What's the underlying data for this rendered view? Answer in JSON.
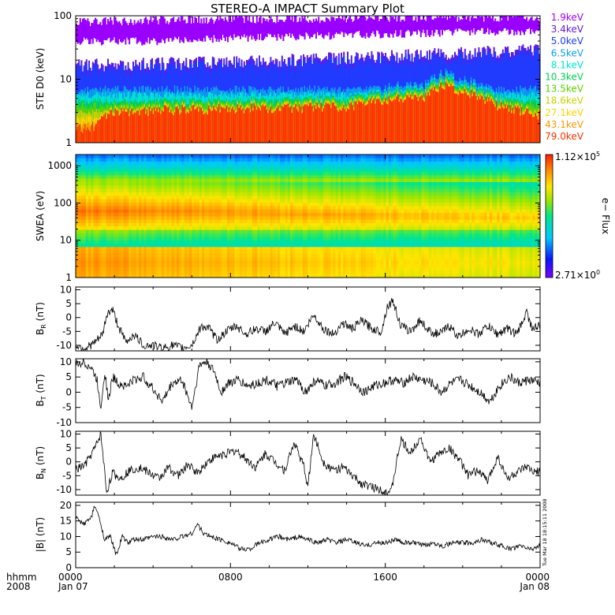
{
  "title": "STEREO-A IMPACT Summary Plot",
  "stamp": "Tue Mar 18 18:15:11 2008",
  "time_axis": {
    "row1_label": "hhmm",
    "row2_label": "2008",
    "ticks": [
      {
        "hour": 0,
        "top": "0000",
        "bottom": "Jan 07"
      },
      {
        "hour": 8,
        "top": "0800",
        "bottom": ""
      },
      {
        "hour": 16,
        "top": "1600",
        "bottom": ""
      },
      {
        "hour": 24,
        "top": "0000",
        "bottom": "Jan 08"
      }
    ],
    "range_hours": [
      0,
      24
    ]
  },
  "chart_data": [
    {
      "type": "line",
      "panel": "ste",
      "ylabel": "STE D0 (keV)",
      "yscale": "log",
      "ylim": [
        1,
        100
      ],
      "yticks": [
        {
          "v": 1,
          "label": "1"
        },
        {
          "v": 10,
          "label": "10"
        },
        {
          "v": 100,
          "label": "100"
        }
      ],
      "channels": [
        {
          "name": "1.9keV",
          "color": "#9900ff"
        },
        {
          "name": "3.4keV",
          "color": "#5a1ee6"
        },
        {
          "name": "5.0keV",
          "color": "#1e3cff"
        },
        {
          "name": "6.5keV",
          "color": "#0aa0f0"
        },
        {
          "name": "8.1keV",
          "color": "#00e6d2"
        },
        {
          "name": "10.3keV",
          "color": "#00d250"
        },
        {
          "name": "13.5keV",
          "color": "#5ad200"
        },
        {
          "name": "18.6keV",
          "color": "#c8d200"
        },
        {
          "name": "27.1keV",
          "color": "#ffd200"
        },
        {
          "name": "43.1keV",
          "color": "#ff9600"
        },
        {
          "name": "79.0keV",
          "color": "#ff3200"
        }
      ],
      "bands": [
        {
          "channel": "1.9keV",
          "hours": [
            0,
            4,
            8,
            12,
            16,
            20,
            24
          ],
          "low": [
            40,
            40,
            45,
            48,
            52,
            55,
            58
          ],
          "high": [
            85,
            90,
            95,
            95,
            100,
            100,
            100
          ]
        },
        {
          "channel": "5.0keV",
          "hours": [
            0,
            4,
            8,
            12,
            16,
            20,
            24
          ],
          "low": [
            9,
            9,
            10,
            11,
            12,
            13,
            13
          ],
          "high": [
            16,
            17,
            18,
            20,
            22,
            25,
            28
          ]
        },
        {
          "channel": "79.0keV",
          "hours": [
            0,
            1,
            2,
            6,
            10,
            14,
            16,
            18,
            19,
            20,
            22,
            24
          ],
          "low": [
            1,
            1,
            1,
            1,
            1,
            1,
            1,
            1,
            1,
            1,
            1,
            1
          ],
          "high": [
            1.5,
            1.8,
            3,
            3.2,
            3.4,
            3.5,
            4.5,
            5,
            8,
            6,
            3.5,
            2.5
          ]
        }
      ]
    },
    {
      "type": "heatmap",
      "panel": "swea",
      "ylabel": "SWEA (eV)",
      "yscale": "log",
      "ylim": [
        1,
        2000
      ],
      "yticks": [
        {
          "v": 1,
          "label": "1"
        },
        {
          "v": 10,
          "label": "10"
        },
        {
          "v": 100,
          "label": "100"
        },
        {
          "v": 1000,
          "label": "1000"
        }
      ],
      "colorbar": {
        "label": "e− Flux",
        "max_label": "1.12×10",
        "max_exp": "5",
        "min_label": "2.71×10",
        "min_exp": "0",
        "scale": "log"
      },
      "peak_energy_ev": [
        {
          "hour": 0,
          "ev": 60
        },
        {
          "hour": 6,
          "ev": 60
        },
        {
          "hour": 12,
          "ev": 50
        },
        {
          "hour": 18,
          "ev": 45
        },
        {
          "hour": 24,
          "ev": 40
        }
      ],
      "low_energy_bright_ev": [
        1,
        5
      ]
    },
    {
      "type": "line",
      "panel": "br",
      "ylabel": "B",
      "ylabel_sub": "R",
      "ylabel_unit": "(nT)",
      "ylim": [
        -12,
        11
      ],
      "yticks": [
        {
          "v": -10,
          "label": "-10"
        },
        {
          "v": -5,
          "label": "-5"
        },
        {
          "v": 0,
          "label": "0"
        },
        {
          "v": 5,
          "label": "5"
        },
        {
          "v": 10,
          "label": "10"
        }
      ],
      "x": [
        0,
        0.5,
        1,
        1.4,
        1.6,
        1.9,
        2.2,
        2.6,
        3.0,
        3.5,
        4.0,
        4.5,
        5.0,
        5.5,
        6.0,
        6.5,
        6.9,
        7.3,
        7.8,
        8.3,
        8.8,
        9.3,
        9.8,
        10.3,
        10.8,
        11.3,
        11.8,
        12.3,
        12.8,
        13.3,
        13.8,
        14.3,
        14.8,
        15.3,
        15.8,
        16.1,
        16.4,
        16.8,
        17.3,
        17.8,
        18.3,
        18.8,
        19.3,
        19.8,
        20.3,
        20.8,
        21.3,
        21.8,
        22.3,
        22.8,
        23.3,
        23.6,
        24
      ],
      "y": [
        -10,
        -11,
        -9,
        -6,
        1,
        3,
        -3,
        -9,
        -6,
        -10,
        -10,
        -11,
        -10,
        -11,
        -10,
        -3,
        -4,
        -8,
        -5,
        -3,
        -6,
        -4,
        -5,
        -2,
        -6,
        -3,
        -5,
        1,
        -4,
        -6,
        -2,
        -4,
        -1,
        -4,
        -5,
        4,
        6,
        -3,
        -5,
        -1,
        -5,
        -6,
        -3,
        -7,
        -4,
        -6,
        -3,
        -6,
        -4,
        -6,
        2,
        -4,
        -3
      ]
    },
    {
      "type": "line",
      "panel": "bt",
      "ylabel": "B",
      "ylabel_sub": "T",
      "ylabel_unit": "(nT)",
      "ylim": [
        -10,
        11
      ],
      "yticks": [
        {
          "v": -10,
          "label": "-10"
        },
        {
          "v": -5,
          "label": "-5"
        },
        {
          "v": 0,
          "label": "0"
        },
        {
          "v": 5,
          "label": "5"
        },
        {
          "v": 10,
          "label": "10"
        }
      ],
      "x": [
        0,
        0.4,
        0.8,
        1.1,
        1.3,
        1.5,
        1.7,
        1.9,
        2.2,
        2.6,
        3.0,
        3.5,
        4.0,
        4.5,
        5.0,
        5.5,
        6.0,
        6.4,
        6.8,
        7.2,
        7.5,
        7.9,
        8.4,
        8.9,
        9.4,
        9.9,
        10.4,
        10.9,
        11.4,
        11.9,
        12.4,
        12.9,
        13.4,
        13.9,
        14.4,
        14.9,
        15.4,
        15.9,
        16.4,
        16.9,
        17.4,
        17.9,
        18.4,
        18.9,
        19.4,
        19.9,
        20.4,
        20.9,
        21.4,
        21.9,
        22.4,
        22.9,
        23.4,
        24
      ],
      "y": [
        9,
        10,
        8,
        4,
        -5,
        7,
        -3,
        5,
        3,
        2,
        4,
        5,
        1,
        -3,
        3,
        4,
        -5,
        9,
        10,
        6,
        0,
        3,
        4,
        2,
        3,
        4,
        2,
        3,
        4,
        0,
        4,
        2,
        3,
        5,
        3,
        0,
        2,
        3,
        4,
        3,
        5,
        4,
        3,
        0,
        3,
        4,
        2,
        0,
        -3,
        2,
        5,
        3,
        4,
        3
      ]
    },
    {
      "type": "line",
      "panel": "bn",
      "ylabel": "B",
      "ylabel_sub": "N",
      "ylabel_unit": "(nT)",
      "ylim": [
        -12,
        11
      ],
      "yticks": [
        {
          "v": -10,
          "label": "-10"
        },
        {
          "v": -5,
          "label": "-5"
        },
        {
          "v": 0,
          "label": "0"
        },
        {
          "v": 5,
          "label": "5"
        },
        {
          "v": 10,
          "label": "10"
        }
      ],
      "x": [
        0,
        0.5,
        1.0,
        1.3,
        1.6,
        1.9,
        2.3,
        2.8,
        3.3,
        3.8,
        4.3,
        4.8,
        5.3,
        5.8,
        6.3,
        6.8,
        7.3,
        7.8,
        8.3,
        8.8,
        9.3,
        9.8,
        10.3,
        10.8,
        11.3,
        11.8,
        12.0,
        12.3,
        12.8,
        13.3,
        13.8,
        14.3,
        14.8,
        15.3,
        15.8,
        16.3,
        16.8,
        17.3,
        17.8,
        18.3,
        18.8,
        19.3,
        19.8,
        20.3,
        20.8,
        21.3,
        21.8,
        22.3,
        22.8,
        23.3,
        23.7,
        24
      ],
      "y": [
        -3,
        -1,
        5,
        10,
        -11,
        -4,
        -6,
        -3,
        -2,
        -4,
        -6,
        -2,
        -5,
        -1,
        -4,
        0,
        2,
        3,
        4,
        1,
        -2,
        3,
        0,
        -3,
        7,
        -2,
        -9,
        10,
        0,
        -3,
        -2,
        -5,
        -8,
        -9,
        -10,
        -11,
        8,
        3,
        9,
        0,
        3,
        5,
        1,
        -5,
        -3,
        -7,
        2,
        -6,
        -4,
        -2,
        -4,
        -3
      ]
    },
    {
      "type": "line",
      "panel": "bmag",
      "ylabel": "|B| (nT)",
      "ylim": [
        0,
        21
      ],
      "yticks": [
        {
          "v": 0,
          "label": "0"
        },
        {
          "v": 5,
          "label": "5"
        },
        {
          "v": 10,
          "label": "10"
        },
        {
          "v": 15,
          "label": "15"
        },
        {
          "v": 20,
          "label": "20"
        }
      ],
      "x": [
        0,
        0.4,
        0.8,
        1.0,
        1.3,
        1.5,
        1.8,
        2.1,
        2.4,
        2.7,
        3.0,
        3.5,
        4.0,
        4.5,
        5.0,
        5.5,
        6.0,
        6.3,
        6.6,
        7.0,
        7.5,
        8.0,
        8.5,
        9.0,
        9.5,
        10.0,
        10.5,
        11.0,
        11.5,
        12.0,
        12.5,
        13.0,
        13.5,
        14.0,
        14.5,
        15.0,
        15.5,
        16.0,
        16.5,
        17.0,
        17.5,
        18.0,
        18.5,
        19.0,
        19.5,
        20.0,
        20.5,
        21.0,
        21.5,
        22.0,
        22.5,
        23.0,
        23.5,
        24
      ],
      "y": [
        16,
        14,
        16,
        20,
        14,
        9,
        10,
        4,
        10,
        8,
        9,
        9,
        10,
        10,
        9,
        10,
        11,
        14,
        11,
        10,
        9,
        8,
        6,
        6,
        8,
        9,
        10,
        9,
        10,
        9,
        8,
        9,
        8,
        9,
        8,
        7,
        8,
        8,
        9,
        8,
        8,
        7,
        8,
        7,
        8,
        8,
        8,
        9,
        8,
        7,
        6,
        7,
        6,
        7
      ]
    }
  ]
}
